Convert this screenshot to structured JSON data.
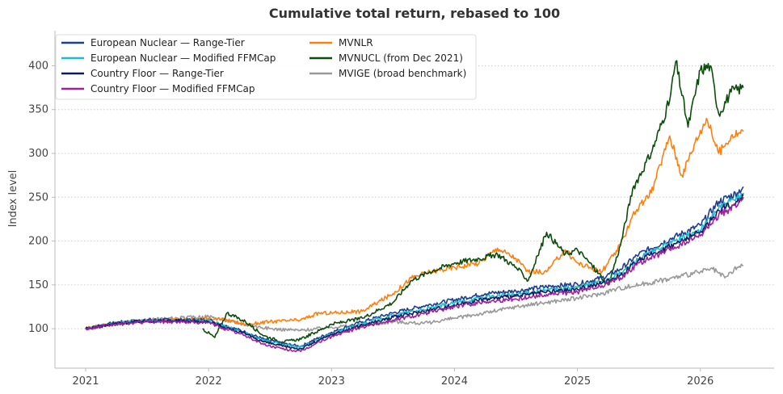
{
  "chart_data": {
    "type": "line",
    "title": "Cumulative total return, rebased to 100",
    "xlabel": "",
    "ylabel": "Index level",
    "xlim": [
      2020.75,
      2026.6
    ],
    "ylim": [
      55,
      440
    ],
    "xticks": [
      2021,
      2022,
      2023,
      2024,
      2025,
      2026
    ],
    "xtick_labels": [
      "2021",
      "2022",
      "2023",
      "2024",
      "2025",
      "2026"
    ],
    "yticks": [
      100,
      150,
      200,
      250,
      300,
      350,
      400
    ],
    "ytick_labels": [
      "100",
      "150",
      "200",
      "250",
      "300",
      "350",
      "400"
    ],
    "grid": "horizontal dotted",
    "legend_position": "top-left",
    "series": [
      {
        "name": "European Nuclear — Range-Tier",
        "color": "#1f3f8c",
        "x": [
          2021.0,
          2021.25,
          2021.5,
          2021.75,
          2022.0,
          2022.15,
          2022.3,
          2022.45,
          2022.6,
          2022.75,
          2022.9,
          2023.0,
          2023.25,
          2023.5,
          2023.75,
          2024.0,
          2024.25,
          2024.5,
          2024.75,
          2025.0,
          2025.2,
          2025.35,
          2025.5,
          2025.75,
          2026.0,
          2026.15,
          2026.3,
          2026.35
        ],
        "y": [
          100,
          107,
          110,
          110,
          110,
          103,
          96,
          88,
          83,
          80,
          90,
          96,
          108,
          118,
          126,
          133,
          140,
          143,
          148,
          151,
          158,
          168,
          185,
          202,
          218,
          245,
          255,
          262
        ]
      },
      {
        "name": "European Nuclear — Modified FFMCap",
        "color": "#17becf",
        "x": [
          2021.0,
          2021.25,
          2021.5,
          2021.75,
          2022.0,
          2022.15,
          2022.3,
          2022.45,
          2022.6,
          2022.75,
          2022.9,
          2023.0,
          2023.25,
          2023.5,
          2023.75,
          2024.0,
          2024.25,
          2024.5,
          2024.75,
          2025.0,
          2025.2,
          2025.35,
          2025.5,
          2025.75,
          2026.0,
          2026.15,
          2026.3,
          2026.35
        ],
        "y": [
          100,
          106,
          109,
          109,
          109,
          102,
          95,
          87,
          82,
          79,
          88,
          94,
          106,
          115,
          122,
          129,
          136,
          139,
          144,
          147,
          154,
          163,
          180,
          197,
          212,
          238,
          248,
          255
        ]
      },
      {
        "name": "Country Floor — Range-Tier",
        "color": "#0d1a5e",
        "x": [
          2021.0,
          2021.25,
          2021.5,
          2021.75,
          2022.0,
          2022.15,
          2022.3,
          2022.45,
          2022.6,
          2022.75,
          2022.9,
          2023.0,
          2023.25,
          2023.5,
          2023.75,
          2024.0,
          2024.25,
          2024.5,
          2024.75,
          2025.0,
          2025.2,
          2025.35,
          2025.5,
          2025.75,
          2026.0,
          2026.15,
          2026.3,
          2026.35
        ],
        "y": [
          100,
          106,
          109,
          109,
          108,
          101,
          94,
          85,
          80,
          77,
          87,
          93,
          104,
          113,
          120,
          127,
          134,
          137,
          142,
          145,
          152,
          161,
          178,
          194,
          210,
          235,
          245,
          252
        ]
      },
      {
        "name": "Country Floor — Modified FFMCap",
        "color": "#a020a0",
        "x": [
          2021.0,
          2021.25,
          2021.5,
          2021.75,
          2022.0,
          2022.15,
          2022.3,
          2022.45,
          2022.6,
          2022.75,
          2022.9,
          2023.0,
          2023.25,
          2023.5,
          2023.75,
          2024.0,
          2024.25,
          2024.5,
          2024.75,
          2025.0,
          2025.2,
          2025.35,
          2025.5,
          2025.75,
          2026.0,
          2026.15,
          2026.3,
          2026.35
        ],
        "y": [
          100,
          105,
          108,
          108,
          107,
          99,
          92,
          82,
          77,
          74,
          85,
          91,
          102,
          110,
          117,
          125,
          131,
          134,
          139,
          142,
          149,
          158,
          175,
          190,
          206,
          230,
          240,
          250
        ]
      },
      {
        "name": "MVNLR",
        "color": "#ff7f0e",
        "x": [
          2021.0,
          2021.25,
          2021.5,
          2021.75,
          2022.0,
          2022.15,
          2022.3,
          2022.5,
          2022.75,
          2022.9,
          2023.0,
          2023.25,
          2023.5,
          2023.65,
          2023.8,
          2024.0,
          2024.2,
          2024.35,
          2024.5,
          2024.6,
          2024.75,
          2024.9,
          2025.0,
          2025.2,
          2025.35,
          2025.45,
          2025.6,
          2025.75,
          2025.85,
          2025.95,
          2026.05,
          2026.15,
          2026.25,
          2026.35
        ],
        "y": [
          100,
          106,
          109,
          110,
          112,
          110,
          105,
          108,
          110,
          118,
          118,
          120,
          140,
          158,
          165,
          170,
          175,
          192,
          180,
          165,
          165,
          190,
          175,
          165,
          195,
          230,
          255,
          320,
          275,
          310,
          340,
          300,
          320,
          325
        ]
      },
      {
        "name": "MVNUCL (from Dec 2021)",
        "color": "#0b4d0b",
        "x": [
          2021.95,
          2022.05,
          2022.15,
          2022.3,
          2022.45,
          2022.6,
          2022.75,
          2022.9,
          2023.0,
          2023.25,
          2023.5,
          2023.65,
          2023.8,
          2024.0,
          2024.2,
          2024.35,
          2024.5,
          2024.6,
          2024.75,
          2024.9,
          2025.0,
          2025.1,
          2025.25,
          2025.35,
          2025.45,
          2025.6,
          2025.75,
          2025.8,
          2025.9,
          2026.0,
          2026.08,
          2026.15,
          2026.25,
          2026.35
        ],
        "y": [
          100,
          90,
          118,
          108,
          92,
          85,
          88,
          98,
          105,
          112,
          130,
          155,
          165,
          175,
          180,
          185,
          170,
          155,
          210,
          185,
          190,
          175,
          150,
          195,
          260,
          300,
          360,
          405,
          330,
          395,
          400,
          345,
          370,
          375
        ]
      },
      {
        "name": "MVIGE (broad benchmark)",
        "color": "#999999",
        "x": [
          2021.0,
          2021.25,
          2021.5,
          2021.75,
          2022.0,
          2022.25,
          2022.5,
          2022.75,
          2023.0,
          2023.25,
          2023.5,
          2023.75,
          2024.0,
          2024.25,
          2024.5,
          2024.75,
          2025.0,
          2025.2,
          2025.3,
          2025.5,
          2025.75,
          2026.0,
          2026.1,
          2026.2,
          2026.3,
          2026.35
        ],
        "y": [
          100,
          106,
          110,
          112,
          114,
          106,
          100,
          98,
          102,
          104,
          108,
          106,
          112,
          118,
          125,
          130,
          135,
          140,
          145,
          150,
          157,
          165,
          168,
          158,
          170,
          172
        ]
      }
    ]
  }
}
